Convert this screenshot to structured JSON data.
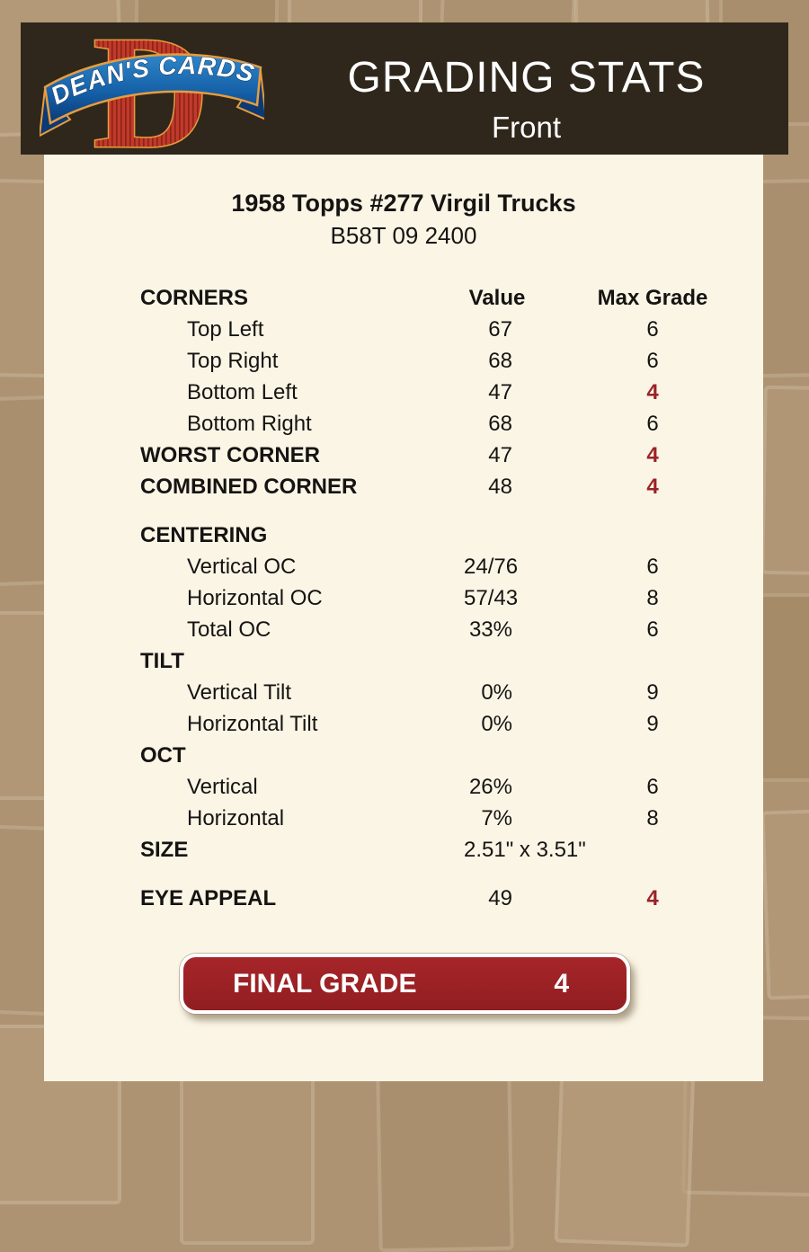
{
  "colors": {
    "page_bg": "#AD9372",
    "header_bg": "#2F271B",
    "panel_bg": "#FBF5E6",
    "grade_red": "#9A2328",
    "button_red": "#9B2124",
    "logo_red": "#C13A2A",
    "logo_blue": "#1560A8",
    "logo_gold": "#E89C3F"
  },
  "header": {
    "logo": {
      "brand": "DEAN'S CARDS",
      "monogram": "D"
    },
    "title": "GRADING STATS",
    "subtitle": "Front"
  },
  "card": {
    "title": "1958 Topps #277 Virgil Trucks",
    "code": "B58T 09 2400"
  },
  "table": {
    "header": {
      "label": "CORNERS",
      "value": "Value",
      "max_grade": "Max Grade"
    },
    "rows": [
      {
        "label": "Top Left",
        "value": "67",
        "grade": "6",
        "indent": true
      },
      {
        "label": "Top Right",
        "value": "68",
        "grade": "6",
        "indent": true
      },
      {
        "label": "Bottom Left",
        "value": "47",
        "grade": "4",
        "indent": true,
        "red": true
      },
      {
        "label": "Bottom Right",
        "value": "68",
        "grade": "6",
        "indent": true
      },
      {
        "label": "WORST CORNER",
        "value": "47",
        "grade": "4",
        "bold": true,
        "red": true
      },
      {
        "label": "COMBINED CORNER",
        "value": "48",
        "grade": "4",
        "bold": true,
        "red": true
      },
      {
        "label": "CENTERING",
        "value": "",
        "grade": "",
        "bold": true,
        "gap": "lg"
      },
      {
        "label": "Vertical OC",
        "value": "24/76",
        "grade": "6",
        "indent": true
      },
      {
        "label": "Horizontal OC",
        "value": "57/43",
        "grade": "8",
        "indent": true
      },
      {
        "label": "Total OC",
        "value": "33%",
        "grade": "6",
        "indent": true
      },
      {
        "label": "TILT",
        "value": "",
        "grade": "",
        "bold": true
      },
      {
        "label": "Vertical Tilt",
        "value": "0%",
        "grade": "9",
        "indent": true
      },
      {
        "label": "Horizontal Tilt",
        "value": "0%",
        "grade": "9",
        "indent": true
      },
      {
        "label": "OCT",
        "value": "",
        "grade": "",
        "bold": true
      },
      {
        "label": "Vertical",
        "value": "26%",
        "grade": "6",
        "indent": true
      },
      {
        "label": "Horizontal",
        "value": "7%",
        "grade": "8",
        "indent": true
      },
      {
        "label": "SIZE",
        "value": "2.51\" x 3.51\"",
        "grade": "",
        "bold": true
      },
      {
        "label": "EYE APPEAL",
        "value": "49",
        "grade": "4",
        "bold": true,
        "red": true,
        "gap": "lg"
      }
    ]
  },
  "final_grade": {
    "label": "FINAL GRADE",
    "value": "4"
  }
}
